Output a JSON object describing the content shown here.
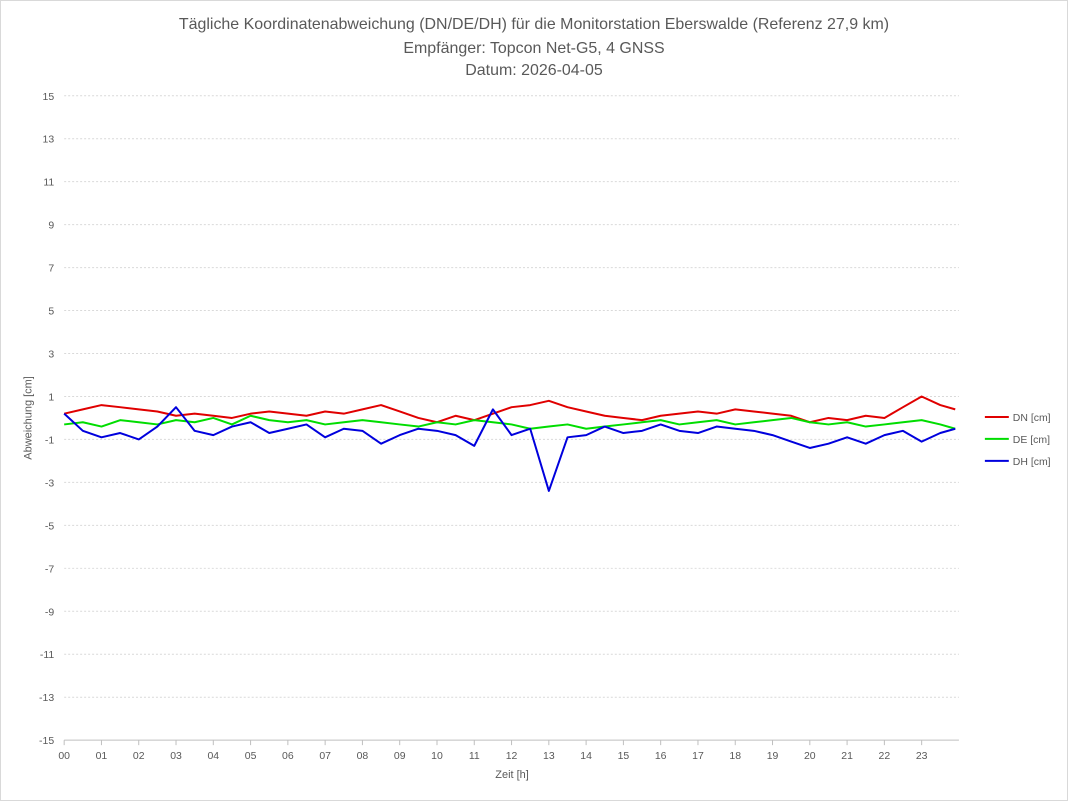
{
  "chart_data": {
    "type": "line",
    "title_lines": [
      "Tägliche Koordinatenabweichung (DN/DE/DH) für die Monitorstation Eberswalde (Referenz 27,9 km)",
      "Empfänger: Topcon Net-G5, 4 GNSS",
      "Datum: 2026-04-05"
    ],
    "xlabel": "Zeit [h]",
    "ylabel": "Abweichung [cm]",
    "x_ticks": [
      "00",
      "01",
      "02",
      "03",
      "04",
      "05",
      "06",
      "07",
      "08",
      "09",
      "10",
      "11",
      "12",
      "13",
      "14",
      "15",
      "16",
      "17",
      "18",
      "19",
      "20",
      "21",
      "22",
      "23"
    ],
    "y_ticks": [
      "15",
      "13",
      "11",
      "9",
      "7",
      "5",
      "3",
      "1",
      "-1",
      "-3",
      "-5",
      "-7",
      "-9",
      "-11",
      "-13",
      "-15"
    ],
    "xlim": [
      0,
      24
    ],
    "ylim": [
      -15,
      15
    ],
    "grid": "horizontal dotted",
    "legend_position": "right",
    "x": [
      0,
      0.5,
      1,
      1.5,
      2,
      2.5,
      3,
      3.5,
      4,
      4.5,
      5,
      5.5,
      6,
      6.5,
      7,
      7.5,
      8,
      8.5,
      9,
      9.5,
      10,
      10.5,
      11,
      11.5,
      12,
      12.5,
      13,
      13.5,
      14,
      14.5,
      15,
      15.5,
      16,
      16.5,
      17,
      17.5,
      18,
      18.5,
      19,
      19.5,
      20,
      20.5,
      21,
      21.5,
      22,
      22.5,
      23,
      23.5,
      23.9
    ],
    "series": [
      {
        "name": "DN [cm]",
        "color": "#e00000",
        "values": [
          0.2,
          0.4,
          0.6,
          0.5,
          0.4,
          0.3,
          0.1,
          0.2,
          0.1,
          0.0,
          0.2,
          0.3,
          0.2,
          0.1,
          0.3,
          0.2,
          0.4,
          0.6,
          0.3,
          0.0,
          -0.2,
          0.1,
          -0.1,
          0.2,
          0.5,
          0.6,
          0.8,
          0.5,
          0.3,
          0.1,
          0.0,
          -0.1,
          0.1,
          0.2,
          0.3,
          0.2,
          0.4,
          0.3,
          0.2,
          0.1,
          -0.2,
          0.0,
          -0.1,
          0.1,
          0.0,
          0.5,
          1.0,
          0.6,
          0.4
        ]
      },
      {
        "name": "DE [cm]",
        "color": "#00dd00",
        "values": [
          -0.3,
          -0.2,
          -0.4,
          -0.1,
          -0.2,
          -0.3,
          -0.1,
          -0.2,
          0.0,
          -0.3,
          0.1,
          -0.1,
          -0.2,
          -0.1,
          -0.3,
          -0.2,
          -0.1,
          -0.2,
          -0.3,
          -0.4,
          -0.2,
          -0.3,
          -0.1,
          -0.2,
          -0.3,
          -0.5,
          -0.4,
          -0.3,
          -0.5,
          -0.4,
          -0.3,
          -0.2,
          -0.1,
          -0.3,
          -0.2,
          -0.1,
          -0.3,
          -0.2,
          -0.1,
          0.0,
          -0.2,
          -0.3,
          -0.2,
          -0.4,
          -0.3,
          -0.2,
          -0.1,
          -0.3,
          -0.5
        ]
      },
      {
        "name": "DH [cm]",
        "color": "#0000dd",
        "values": [
          0.2,
          -0.6,
          -0.9,
          -0.7,
          -1.0,
          -0.4,
          0.5,
          -0.6,
          -0.8,
          -0.4,
          -0.2,
          -0.7,
          -0.5,
          -0.3,
          -0.9,
          -0.5,
          -0.6,
          -1.2,
          -0.8,
          -0.5,
          -0.6,
          -0.8,
          -1.3,
          0.4,
          -0.8,
          -0.5,
          -3.4,
          -0.9,
          -0.8,
          -0.4,
          -0.7,
          -0.6,
          -0.3,
          -0.6,
          -0.7,
          -0.4,
          -0.5,
          -0.6,
          -0.8,
          -1.1,
          -1.4,
          -1.2,
          -0.9,
          -1.2,
          -0.8,
          -0.6,
          -1.1,
          -0.7,
          -0.5
        ]
      }
    ]
  }
}
